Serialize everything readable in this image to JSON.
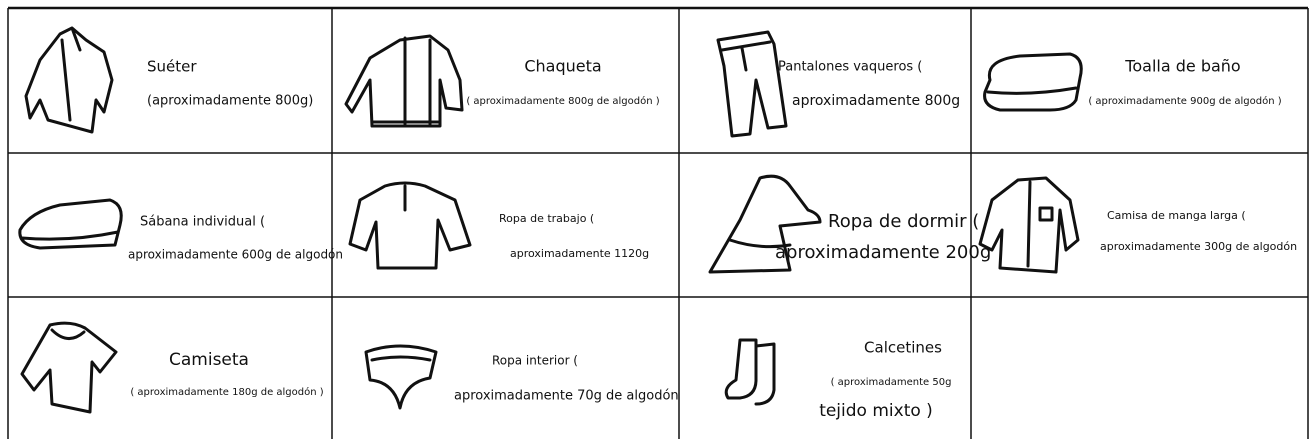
{
  "cells": [
    {
      "lines": [
        "Suéter",
        "(aproximadamente 800g)"
      ]
    },
    {
      "lines": [
        "Chaqueta",
        "( aproximadamente 800g de algodón )"
      ]
    },
    {
      "lines": [
        "Pantalones vaqueros (",
        "aproximadamente 800g"
      ]
    },
    {
      "lines": [
        "Toalla de baño",
        "( aproximadamente 900g de algodón )"
      ]
    },
    {
      "lines": [
        "Sábana individual (",
        "aproximadamente 600g de algodón"
      ]
    },
    {
      "lines": [
        "Ropa de trabajo (",
        "aproximadamente 1120g"
      ]
    },
    {
      "lines": [
        "Ropa de dormir (",
        "aproximadamente 200g"
      ]
    },
    {
      "lines": [
        "Camisa de manga larga (",
        "aproximadamente 300g de algodón"
      ]
    },
    {
      "lines": [
        "Camiseta",
        "( aproximadamente 180g de algodón )"
      ]
    },
    {
      "lines": [
        "Ropa interior (",
        "aproximadamente 70g de algodón"
      ]
    },
    {
      "lines": [
        "Calcetines",
        "( aproximadamente 50g",
        "tejido mixto )"
      ]
    }
  ]
}
